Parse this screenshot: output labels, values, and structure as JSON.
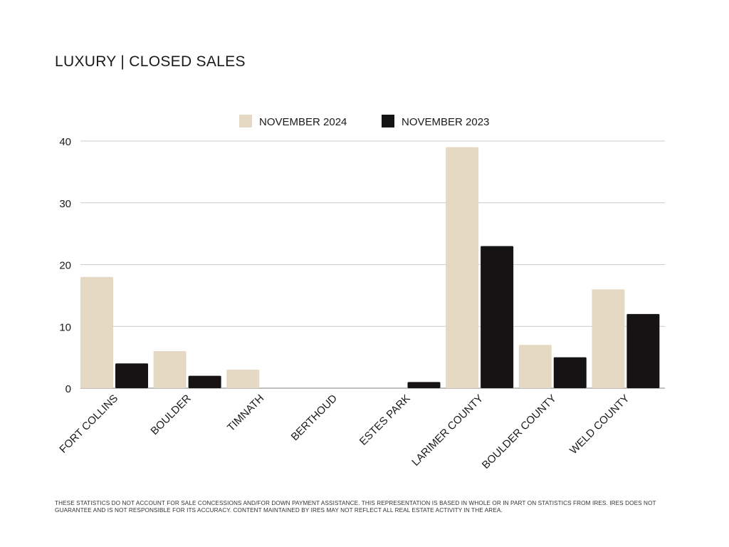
{
  "page": {
    "title": "LUXURY | CLOSED SALES",
    "footnote": "THESE STATISTICS DO NOT ACCOUNT FOR SALE CONCESSIONS AND/FOR DOWN PAYMENT ASSISTANCE. THIS REPRESENTATION IS BASED IN WHOLE OR IN PART ON STATISTICS FROM IRES. IRES DOES NOT GUARANTEE AND IS NOT RESPONSIBLE FOR ITS ACCURACY. CONTENT MAINTAINED BY IRES MAY NOT REFLECT ALL REAL ESTATE ACTIVITY IN THE AREA."
  },
  "colors": {
    "november_2024": "#e6d9c4",
    "november_2023": "#151314",
    "grid": "#cccccc",
    "text": "#1a1a1a"
  },
  "chart_data": {
    "type": "bar",
    "title": "LUXURY | CLOSED SALES",
    "categories": [
      "FORT COLLINS",
      "BOULDER",
      "TIMNATH",
      "BERTHOUD",
      "ESTES PARK",
      "LARIMER COUNTY",
      "BOULDER COUNTY",
      "WELD COUNTY"
    ],
    "series": [
      {
        "name": "NOVEMBER 2024",
        "color": "#e6d9c4",
        "values": [
          18,
          6,
          3,
          0,
          0,
          39,
          7,
          16
        ]
      },
      {
        "name": "NOVEMBER 2023",
        "color": "#151314",
        "values": [
          4,
          2,
          0,
          0,
          1,
          23,
          5,
          12
        ]
      }
    ],
    "ylim": [
      0,
      40
    ],
    "yticks": [
      "0",
      "10",
      "20",
      "30",
      "40"
    ],
    "grid": true,
    "legend_position": "top-center"
  }
}
